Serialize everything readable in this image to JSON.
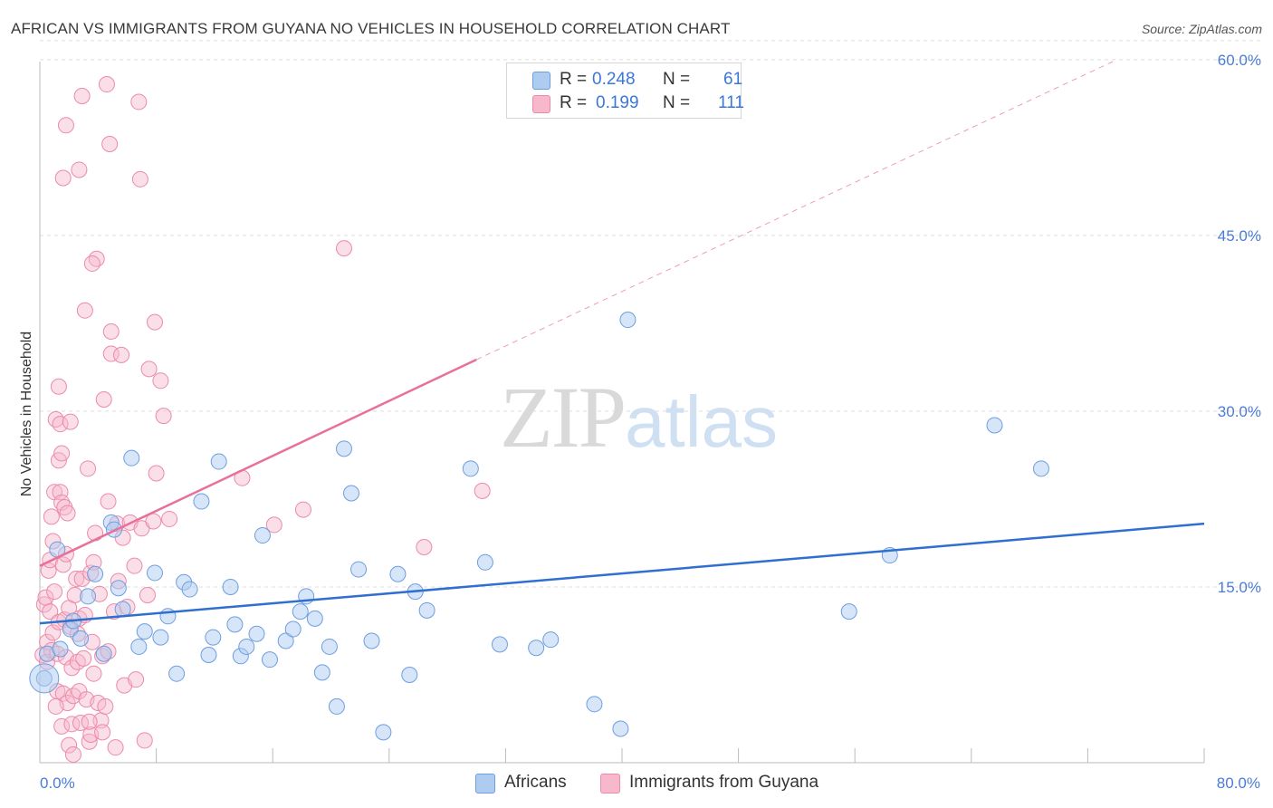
{
  "header": {
    "title": "AFRICAN VS IMMIGRANTS FROM GUYANA NO VEHICLES IN HOUSEHOLD CORRELATION CHART",
    "source": "Source: ZipAtlas.com"
  },
  "watermark": {
    "part1": "ZIP",
    "part2": "atlas"
  },
  "legend": {
    "rows": [
      {
        "r_label": "R =",
        "r_value": "0.248",
        "n_label": "N =",
        "n_value": "61",
        "color": "#aecbf0"
      },
      {
        "r_label": "R =",
        "r_value": "0.199",
        "n_label": "N =",
        "n_value": "111",
        "color": "#f7b8cb"
      }
    ]
  },
  "bottom_legend": {
    "africans": "Africans",
    "guyana": "Immigrants from Guyana"
  },
  "colors": {
    "blue_fill": "#aecbf0",
    "blue_stroke": "#6d9ee0",
    "blue_line": "#2f6fd0",
    "pink_fill": "#f7b8cb",
    "pink_stroke": "#ec8aa9",
    "pink_line": "#e8709a",
    "grid": "#dddddd",
    "tick_label": "#4a7cd6"
  },
  "chart_data": {
    "type": "scatter",
    "title": "AFRICAN VS IMMIGRANTS FROM GUYANA NO VEHICLES IN HOUSEHOLD CORRELATION CHART",
    "xlabel": "",
    "ylabel": "No Vehicles in Household",
    "xlim": [
      0,
      80
    ],
    "ylim": [
      0,
      62
    ],
    "x_tick_labels": [
      {
        "value": 0,
        "label": "0.0%"
      },
      {
        "value": 80,
        "label": "80.0%"
      }
    ],
    "y_tick_labels": [
      {
        "value": 15,
        "label": "15.0%"
      },
      {
        "value": 30,
        "label": "30.0%"
      },
      {
        "value": 45,
        "label": "45.0%"
      },
      {
        "value": 60,
        "label": "60.0%"
      }
    ],
    "x_minor_ticks": [
      8,
      16,
      24,
      32,
      40,
      48,
      56,
      64,
      72,
      80
    ],
    "series": [
      {
        "name": "Africans",
        "R": 0.248,
        "N": 61,
        "trend": {
          "x": [
            0,
            80
          ],
          "y": [
            11.9,
            20.4
          ],
          "dashed_extension": false
        },
        "points": [
          [
            0.3,
            7.2
          ],
          [
            0.5,
            9.3
          ],
          [
            1.2,
            18.2
          ],
          [
            1.4,
            9.7
          ],
          [
            2.1,
            11.4
          ],
          [
            2.3,
            12.1
          ],
          [
            2.8,
            10.6
          ],
          [
            3.3,
            14.2
          ],
          [
            3.8,
            16.1
          ],
          [
            4.4,
            9.3
          ],
          [
            4.9,
            20.5
          ],
          [
            5.1,
            19.9
          ],
          [
            5.4,
            14.9
          ],
          [
            5.7,
            13.1
          ],
          [
            6.3,
            26.0
          ],
          [
            6.8,
            9.9
          ],
          [
            7.2,
            11.2
          ],
          [
            7.9,
            16.2
          ],
          [
            8.3,
            10.7
          ],
          [
            8.8,
            12.5
          ],
          [
            9.4,
            7.6
          ],
          [
            9.9,
            15.4
          ],
          [
            10.3,
            14.8
          ],
          [
            11.1,
            22.3
          ],
          [
            11.6,
            9.2
          ],
          [
            11.9,
            10.7
          ],
          [
            12.3,
            25.7
          ],
          [
            13.1,
            15.0
          ],
          [
            13.4,
            11.8
          ],
          [
            13.8,
            9.1
          ],
          [
            14.2,
            9.9
          ],
          [
            14.9,
            11.0
          ],
          [
            15.3,
            19.4
          ],
          [
            15.8,
            8.8
          ],
          [
            16.9,
            10.4
          ],
          [
            17.4,
            11.4
          ],
          [
            17.9,
            12.9
          ],
          [
            18.3,
            14.2
          ],
          [
            18.9,
            12.3
          ],
          [
            19.4,
            7.7
          ],
          [
            19.9,
            9.9
          ],
          [
            20.4,
            4.8
          ],
          [
            20.9,
            26.8
          ],
          [
            21.4,
            23.0
          ],
          [
            21.9,
            16.5
          ],
          [
            22.8,
            10.4
          ],
          [
            23.6,
            2.6
          ],
          [
            24.6,
            16.1
          ],
          [
            25.4,
            7.5
          ],
          [
            25.8,
            14.6
          ],
          [
            26.6,
            13.0
          ],
          [
            29.6,
            25.1
          ],
          [
            30.6,
            17.1
          ],
          [
            31.6,
            10.1
          ],
          [
            34.1,
            9.8
          ],
          [
            35.1,
            10.5
          ],
          [
            38.1,
            5.0
          ],
          [
            39.9,
            2.9
          ],
          [
            40.4,
            37.8
          ],
          [
            55.6,
            12.9
          ],
          [
            58.4,
            17.7
          ],
          [
            65.6,
            28.8
          ],
          [
            68.8,
            25.1
          ]
        ]
      },
      {
        "name": "Immigrants from Guyana",
        "R": 0.199,
        "N": 111,
        "trend": {
          "x": [
            0,
            30
          ],
          "y": [
            16.8,
            34.4
          ],
          "dashed_extension": true,
          "dashed_to": [
            74,
            60.0
          ]
        },
        "points": [
          [
            0.2,
            9.2
          ],
          [
            0.3,
            13.5
          ],
          [
            0.4,
            14.1
          ],
          [
            0.5,
            10.3
          ],
          [
            0.5,
            8.6
          ],
          [
            0.6,
            16.4
          ],
          [
            0.7,
            12.9
          ],
          [
            0.7,
            17.3
          ],
          [
            0.8,
            9.6
          ],
          [
            0.9,
            18.9
          ],
          [
            0.9,
            11.1
          ],
          [
            1.0,
            23.1
          ],
          [
            1.0,
            14.6
          ],
          [
            1.1,
            29.3
          ],
          [
            1.2,
            9.3
          ],
          [
            1.2,
            6.1
          ],
          [
            1.3,
            12.0
          ],
          [
            1.3,
            25.8
          ],
          [
            1.3,
            32.1
          ],
          [
            1.4,
            23.1
          ],
          [
            1.4,
            28.9
          ],
          [
            1.5,
            3.1
          ],
          [
            1.5,
            22.2
          ],
          [
            1.5,
            26.4
          ],
          [
            1.6,
            16.9
          ],
          [
            1.6,
            5.9
          ],
          [
            1.7,
            21.8
          ],
          [
            1.7,
            12.2
          ],
          [
            1.8,
            17.8
          ],
          [
            1.8,
            9.0
          ],
          [
            1.8,
            54.4
          ],
          [
            1.9,
            5.1
          ],
          [
            1.9,
            21.3
          ],
          [
            2.0,
            13.2
          ],
          [
            2.0,
            1.5
          ],
          [
            2.1,
            11.6
          ],
          [
            2.1,
            29.1
          ],
          [
            2.2,
            3.3
          ],
          [
            2.2,
            8.1
          ],
          [
            2.3,
            0.7
          ],
          [
            2.3,
            5.7
          ],
          [
            2.4,
            14.3
          ],
          [
            2.5,
            15.7
          ],
          [
            2.6,
            8.6
          ],
          [
            2.7,
            12.3
          ],
          [
            2.7,
            6.1
          ],
          [
            2.8,
            3.4
          ],
          [
            2.9,
            15.7
          ],
          [
            3.0,
            8.9
          ],
          [
            3.1,
            12.6
          ],
          [
            3.1,
            38.6
          ],
          [
            3.2,
            5.4
          ],
          [
            3.3,
            25.1
          ],
          [
            3.4,
            1.8
          ],
          [
            3.5,
            2.4
          ],
          [
            3.5,
            16.2
          ],
          [
            3.6,
            10.3
          ],
          [
            3.7,
            7.6
          ],
          [
            3.7,
            17.1
          ],
          [
            3.8,
            19.6
          ],
          [
            3.9,
            43.0
          ],
          [
            4.0,
            5.1
          ],
          [
            4.1,
            14.4
          ],
          [
            4.2,
            3.6
          ],
          [
            4.3,
            2.6
          ],
          [
            4.3,
            9.1
          ],
          [
            4.4,
            31.0
          ],
          [
            4.5,
            4.8
          ],
          [
            4.6,
            57.9
          ],
          [
            4.7,
            9.5
          ],
          [
            4.8,
            52.8
          ],
          [
            4.9,
            34.9
          ],
          [
            5.1,
            12.9
          ],
          [
            5.3,
            20.4
          ],
          [
            5.4,
            15.5
          ],
          [
            5.6,
            34.8
          ],
          [
            5.7,
            19.2
          ],
          [
            5.8,
            6.6
          ],
          [
            6.0,
            13.3
          ],
          [
            6.2,
            20.5
          ],
          [
            6.5,
            16.8
          ],
          [
            6.6,
            7.1
          ],
          [
            6.8,
            56.4
          ],
          [
            7.0,
            20.0
          ],
          [
            7.2,
            1.9
          ],
          [
            7.4,
            14.3
          ],
          [
            7.5,
            33.6
          ],
          [
            7.8,
            20.6
          ],
          [
            7.9,
            37.6
          ],
          [
            8.0,
            24.7
          ],
          [
            8.3,
            32.6
          ],
          [
            8.5,
            29.6
          ],
          [
            8.9,
            20.8
          ],
          [
            2.7,
            50.6
          ],
          [
            1.6,
            49.9
          ],
          [
            4.7,
            22.3
          ],
          [
            3.6,
            42.6
          ],
          [
            6.9,
            49.8
          ],
          [
            13.9,
            24.3
          ],
          [
            16.1,
            20.3
          ],
          [
            18.1,
            21.6
          ],
          [
            20.9,
            43.9
          ],
          [
            26.4,
            18.4
          ],
          [
            30.4,
            23.2
          ],
          [
            4.9,
            36.8
          ],
          [
            2.9,
            56.9
          ],
          [
            5.2,
            1.3
          ],
          [
            1.1,
            4.8
          ],
          [
            3.4,
            3.5
          ],
          [
            0.8,
            21.0
          ],
          [
            2.6,
            11.0
          ]
        ]
      }
    ]
  }
}
